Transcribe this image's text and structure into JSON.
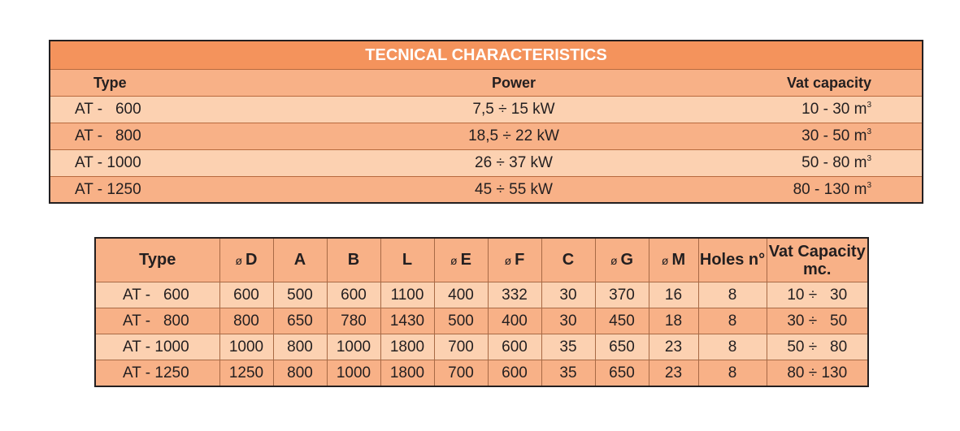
{
  "table1": {
    "title": "TECNICAL CHARACTERISTICS",
    "headers": {
      "type": "Type",
      "power": "Power",
      "vat": "Vat capacity"
    },
    "unit_sup": "3",
    "rows": [
      {
        "type": "AT -   600",
        "power": "7,5 ÷ 15 kW",
        "vat": "10 - 30 m"
      },
      {
        "type": "AT -   800",
        "power": "18,5 ÷ 22 kW",
        "vat": "30 - 50 m"
      },
      {
        "type": "AT - 1000",
        "power": "26 ÷ 37 kW",
        "vat": "50 - 80 m"
      },
      {
        "type": "AT - 1250",
        "power": "45 ÷ 55 kW",
        "vat": "80 - 130 m"
      }
    ]
  },
  "table2": {
    "diameter_symbol": "ø",
    "headers": {
      "type": "Type",
      "d": "D",
      "a": "A",
      "b": "B",
      "l": "L",
      "e": "E",
      "f": "F",
      "c": "C",
      "g": "G",
      "m": "M",
      "holes": "Holes n°",
      "vat_line1": "Vat Capacity",
      "vat_line2": "mc."
    },
    "rows": [
      {
        "type": "AT -   600",
        "d": "600",
        "a": "500",
        "b": "600",
        "l": "1100",
        "e": "400",
        "f": "332",
        "c": "30",
        "g": "370",
        "m": "16",
        "holes": "8",
        "vat": "10 ÷   30"
      },
      {
        "type": "AT -   800",
        "d": "800",
        "a": "650",
        "b": "780",
        "l": "1430",
        "e": "500",
        "f": "400",
        "c": "30",
        "g": "450",
        "m": "18",
        "holes": "8",
        "vat": "30 ÷   50"
      },
      {
        "type": "AT - 1000",
        "d": "1000",
        "a": "800",
        "b": "1000",
        "l": "1800",
        "e": "700",
        "f": "600",
        "c": "35",
        "g": "650",
        "m": "23",
        "holes": "8",
        "vat": "50 ÷   80"
      },
      {
        "type": "AT - 1250",
        "d": "1250",
        "a": "800",
        "b": "1000",
        "l": "1800",
        "e": "700",
        "f": "600",
        "c": "35",
        "g": "650",
        "m": "23",
        "holes": "8",
        "vat": "80 ÷ 130"
      }
    ]
  },
  "colors": {
    "header_dark": "#f4935c",
    "row_dark": "#f8b187",
    "row_light": "#fcd1b1"
  }
}
